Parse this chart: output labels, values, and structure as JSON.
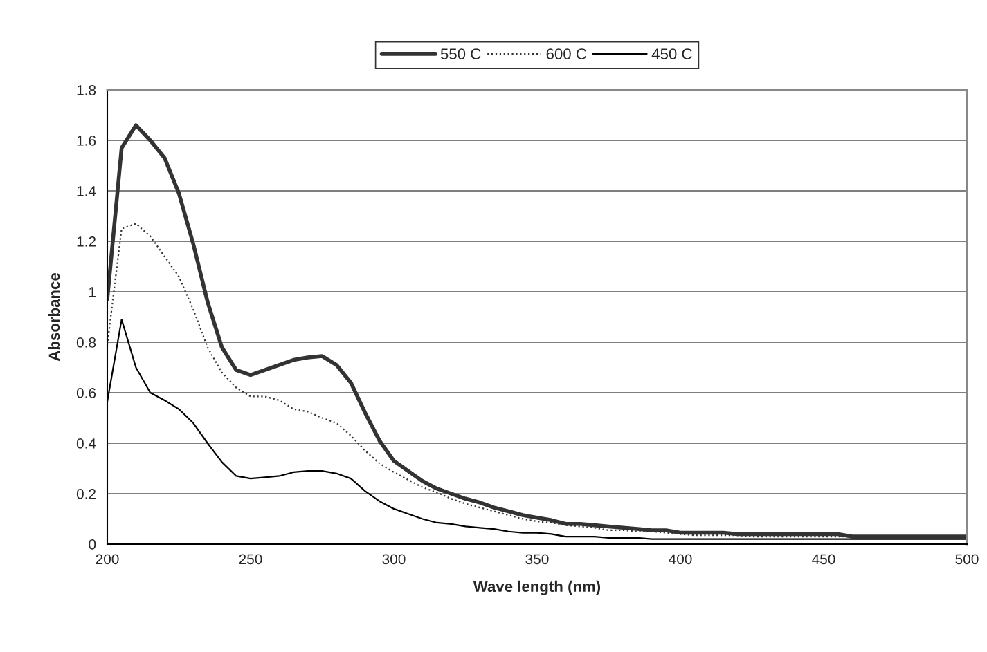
{
  "chart_data": {
    "type": "line",
    "xlabel": "Wave length (nm)",
    "ylabel": "Absorbance",
    "x": [
      200,
      205,
      210,
      215,
      220,
      225,
      230,
      235,
      240,
      245,
      250,
      255,
      260,
      265,
      270,
      275,
      280,
      285,
      290,
      295,
      300,
      305,
      310,
      315,
      320,
      325,
      330,
      335,
      340,
      345,
      350,
      355,
      360,
      365,
      370,
      375,
      380,
      385,
      390,
      395,
      400,
      405,
      410,
      415,
      420,
      425,
      430,
      435,
      440,
      445,
      450,
      455,
      460,
      465,
      470,
      475,
      480,
      485,
      490,
      495,
      500
    ],
    "series": [
      {
        "name": "550 C",
        "color": "#333333",
        "line_style": "solid",
        "values": [
          0.97,
          1.57,
          1.66,
          1.6,
          1.53,
          1.39,
          1.19,
          0.96,
          0.78,
          0.69,
          0.67,
          0.69,
          0.71,
          0.73,
          0.74,
          0.745,
          0.71,
          0.64,
          0.52,
          0.41,
          0.33,
          0.29,
          0.25,
          0.22,
          0.2,
          0.18,
          0.165,
          0.145,
          0.13,
          0.115,
          0.105,
          0.095,
          0.08,
          0.08,
          0.075,
          0.07,
          0.065,
          0.06,
          0.055,
          0.055,
          0.045,
          0.045,
          0.045,
          0.045,
          0.04,
          0.04,
          0.04,
          0.04,
          0.04,
          0.04,
          0.04,
          0.04,
          0.03,
          0.03,
          0.03,
          0.03,
          0.03,
          0.03,
          0.03,
          0.03,
          0.03
        ]
      },
      {
        "name": "600 C",
        "color": "#333333",
        "line_style": "dotted",
        "values": [
          0.79,
          1.25,
          1.27,
          1.22,
          1.14,
          1.06,
          0.93,
          0.78,
          0.68,
          0.62,
          0.585,
          0.585,
          0.57,
          0.535,
          0.525,
          0.5,
          0.48,
          0.43,
          0.37,
          0.32,
          0.285,
          0.255,
          0.225,
          0.205,
          0.18,
          0.16,
          0.145,
          0.13,
          0.115,
          0.1,
          0.09,
          0.085,
          0.075,
          0.07,
          0.065,
          0.055,
          0.055,
          0.05,
          0.05,
          0.045,
          0.04,
          0.035,
          0.035,
          0.035,
          0.035,
          0.03,
          0.03,
          0.03,
          0.03,
          0.03,
          0.03,
          0.03,
          0.03,
          0.03,
          0.03,
          0.03,
          0.03,
          0.03,
          0.03,
          0.03,
          0.03
        ]
      },
      {
        "name": "450 C",
        "color": "#000000",
        "line_style": "solid",
        "values": [
          0.565,
          0.89,
          0.7,
          0.6,
          0.57,
          0.535,
          0.48,
          0.4,
          0.325,
          0.27,
          0.26,
          0.265,
          0.27,
          0.285,
          0.29,
          0.29,
          0.28,
          0.26,
          0.21,
          0.17,
          0.14,
          0.12,
          0.1,
          0.085,
          0.08,
          0.07,
          0.065,
          0.06,
          0.05,
          0.045,
          0.045,
          0.04,
          0.03,
          0.03,
          0.03,
          0.025,
          0.025,
          0.025,
          0.02,
          0.02,
          0.02,
          0.02,
          0.02,
          0.02,
          0.02,
          0.02,
          0.02,
          0.02,
          0.02,
          0.02,
          0.02,
          0.02,
          0.02,
          0.02,
          0.02,
          0.02,
          0.02,
          0.02,
          0.02,
          0.02,
          0.02
        ]
      }
    ],
    "xlim": [
      200,
      500
    ],
    "xticks": [
      200,
      250,
      300,
      350,
      400,
      450,
      500
    ],
    "ylim": [
      0,
      1.8
    ],
    "yticks": [
      0,
      {
        "value": 0.2,
        "label": "0.2"
      },
      {
        "value": 0.4,
        "label": "0.4"
      },
      {
        "value": 0.6,
        "label": "0.6"
      },
      {
        "value": 0.8,
        "label": "0.8"
      },
      1,
      {
        "value": 1.2,
        "label": "1.2"
      },
      {
        "value": 1.4,
        "label": "1.4"
      },
      {
        "value": 1.6,
        "label": "1.6"
      },
      {
        "value": 1.8,
        "label": "1.8"
      }
    ],
    "grid": "y",
    "legend": "top",
    "marker": "none"
  }
}
